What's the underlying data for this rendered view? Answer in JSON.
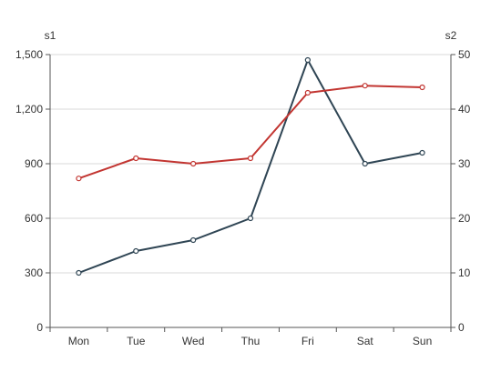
{
  "chart_data": {
    "type": "line",
    "categories": [
      "Mon",
      "Tue",
      "Wed",
      "Thu",
      "Fri",
      "Sat",
      "Sun"
    ],
    "axes": {
      "left": {
        "label": "s1",
        "ylim": [
          0,
          1500
        ],
        "ticks": [
          0,
          300,
          600,
          900,
          1200,
          1500
        ],
        "tick_labels": [
          "0",
          "300",
          "600",
          "900",
          "1,200",
          "1,500"
        ]
      },
      "right": {
        "label": "s2",
        "ylim": [
          0,
          50
        ],
        "ticks": [
          0,
          10,
          20,
          30,
          40,
          50
        ],
        "tick_labels": [
          "0",
          "10",
          "20",
          "30",
          "40",
          "50"
        ]
      }
    },
    "series": [
      {
        "values": [
          300,
          420,
          480,
          600,
          1470,
          900,
          960
        ],
        "axis": "left",
        "color": "#2f4554"
      },
      {
        "values": [
          27.3,
          31,
          30,
          31,
          43,
          44.3,
          44
        ],
        "axis": "right",
        "color": "#c23531"
      }
    ],
    "grid": true,
    "legend": "none"
  }
}
